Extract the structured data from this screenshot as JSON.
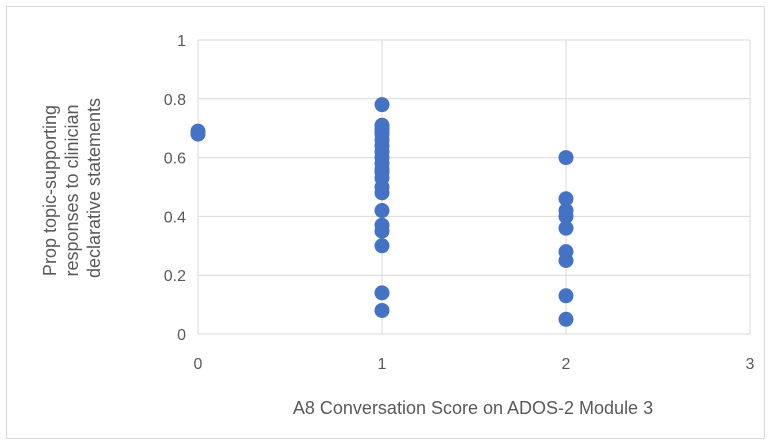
{
  "chart_data": {
    "type": "scatter",
    "xlabel": "A8 Conversation Score on ADOS-2 Module 3",
    "ylabel_lines": [
      "Prop topic-supporting",
      "responses to clinician",
      "declarative statements"
    ],
    "xlim": [
      0,
      3
    ],
    "ylim": [
      0,
      1
    ],
    "x_ticks": [
      "0",
      "1",
      "2",
      "3"
    ],
    "y_ticks": [
      "0",
      "0.2",
      "0.4",
      "0.6",
      "0.8",
      "1"
    ],
    "grid": {
      "horizontal": true,
      "vertical": true
    },
    "marker_color": "#4472C4",
    "points": [
      {
        "x": 0,
        "y": 0.69
      },
      {
        "x": 0,
        "y": 0.68
      },
      {
        "x": 1,
        "y": 0.78
      },
      {
        "x": 1,
        "y": 0.71
      },
      {
        "x": 1,
        "y": 0.7
      },
      {
        "x": 1,
        "y": 0.69
      },
      {
        "x": 1,
        "y": 0.68
      },
      {
        "x": 1,
        "y": 0.66
      },
      {
        "x": 1,
        "y": 0.64
      },
      {
        "x": 1,
        "y": 0.62
      },
      {
        "x": 1,
        "y": 0.6
      },
      {
        "x": 1,
        "y": 0.58
      },
      {
        "x": 1,
        "y": 0.56
      },
      {
        "x": 1,
        "y": 0.55
      },
      {
        "x": 1,
        "y": 0.53
      },
      {
        "x": 1,
        "y": 0.5
      },
      {
        "x": 1,
        "y": 0.48
      },
      {
        "x": 1,
        "y": 0.42
      },
      {
        "x": 1,
        "y": 0.37
      },
      {
        "x": 1,
        "y": 0.35
      },
      {
        "x": 1,
        "y": 0.3
      },
      {
        "x": 1,
        "y": 0.14
      },
      {
        "x": 1,
        "y": 0.08
      },
      {
        "x": 2,
        "y": 0.6
      },
      {
        "x": 2,
        "y": 0.46
      },
      {
        "x": 2,
        "y": 0.42
      },
      {
        "x": 2,
        "y": 0.4
      },
      {
        "x": 2,
        "y": 0.36
      },
      {
        "x": 2,
        "y": 0.28
      },
      {
        "x": 2,
        "y": 0.25
      },
      {
        "x": 2,
        "y": 0.13
      },
      {
        "x": 2,
        "y": 0.05
      }
    ]
  }
}
